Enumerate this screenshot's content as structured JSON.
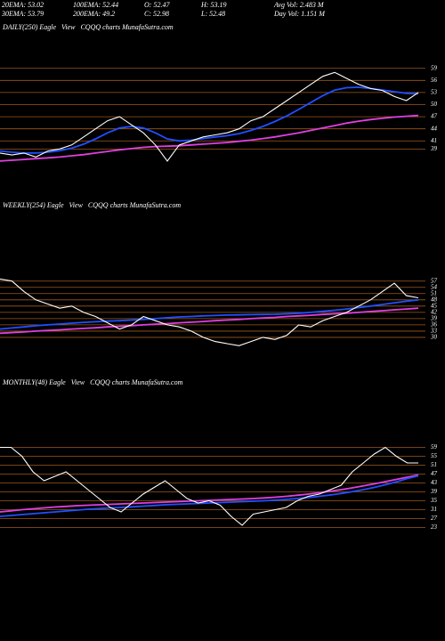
{
  "header": {
    "items": [
      "20EMA: 53.02",
      "100EMA: 52.44",
      "O: 52.47",
      "H: 53.19",
      "Avg Vol: 2.483 M",
      "30EMA: 53.79",
      "200EMA: 49.2",
      "C: 52.98",
      "L: 52.48",
      "Day Vol: 1.151 M"
    ]
  },
  "chart_data": [
    {
      "type": "line",
      "title": "DAILY(250) Eagle   View   CQQQ charts MunafaSutra.com",
      "ylim": [
        34,
        66
      ],
      "yticks": [
        59,
        56,
        53,
        50,
        47,
        44,
        41,
        39
      ],
      "grid": true,
      "series": [
        {
          "color": "#e040e0",
          "values": [
            36,
            36.2,
            36.4,
            36.6,
            36.8,
            37,
            37.3,
            37.6,
            38,
            38.4,
            38.8,
            39.1,
            39.4,
            39.6,
            39.7,
            39.8,
            40,
            40.2,
            40.4,
            40.6,
            40.9,
            41.2,
            41.6,
            42,
            42.5,
            43,
            43.6,
            44.2,
            44.8,
            45.4,
            45.9,
            46.3,
            46.6,
            46.9,
            47.1,
            47.3
          ]
        },
        {
          "color": "#2050ff",
          "values": [
            38.5,
            38.2,
            38,
            38,
            38.2,
            38.6,
            39.2,
            40.2,
            41.5,
            43,
            44.2,
            44.6,
            44.2,
            43,
            41.5,
            41,
            41.2,
            41.6,
            42,
            42.3,
            42.8,
            43.6,
            44.6,
            45.8,
            47.2,
            48.8,
            50.5,
            52.2,
            53.6,
            54.2,
            54.3,
            54,
            53.6,
            53.2,
            52.8,
            52.7
          ]
        },
        {
          "color": "#ffffff",
          "values": [
            38,
            37.5,
            38,
            37,
            38.5,
            39,
            40,
            42,
            44,
            46,
            47,
            45,
            43,
            40,
            36,
            40,
            41,
            42,
            42.5,
            43,
            44,
            46,
            47,
            49,
            51,
            53,
            55,
            57,
            58,
            56.5,
            55,
            54,
            53.5,
            52,
            51,
            53
          ]
        }
      ]
    },
    {
      "type": "line",
      "title": "WEEKLY(254) Eagle   View   CQQQ charts MunafaSutra.com",
      "ylim": [
        21,
        68
      ],
      "yticks": [
        57,
        54,
        51,
        48,
        45,
        42,
        39,
        36,
        33,
        30
      ],
      "grid": true,
      "series": [
        {
          "color": "#e040e0",
          "values": [
            32,
            32.3,
            32.6,
            33,
            33.3,
            33.6,
            34,
            34.3,
            34.6,
            35,
            35.3,
            35.6,
            36,
            36.3,
            36.6,
            37,
            37.3,
            37.6,
            38,
            38.3,
            38.6,
            39,
            39.3,
            39.6,
            40,
            40.3,
            40.6,
            41,
            41.3,
            41.6,
            42,
            42.4,
            42.8,
            43.2,
            43.6,
            44
          ]
        },
        {
          "color": "#2050ff",
          "values": [
            34,
            34.5,
            35,
            35.6,
            36,
            36.4,
            36.8,
            37.2,
            37.5,
            37.8,
            38,
            38.3,
            38.6,
            39,
            39.4,
            39.8,
            40,
            40.3,
            40.5,
            40.7,
            40.8,
            40.9,
            41,
            41.1,
            41.3,
            41.6,
            42,
            42.5,
            43,
            43.6,
            44.3,
            45,
            45.8,
            46.6,
            47.3,
            48
          ]
        },
        {
          "color": "#ffffff",
          "values": [
            58,
            57,
            52,
            48,
            46,
            44,
            45,
            42,
            40,
            37,
            34,
            36,
            40,
            38,
            36,
            35,
            33,
            30,
            28,
            27,
            26,
            28,
            30,
            29,
            31,
            36,
            35,
            38,
            40,
            42,
            45,
            48,
            52,
            56,
            50,
            49
          ]
        }
      ]
    },
    {
      "type": "line",
      "title": "MONTHLY(48) Eagle   View   CQQQ charts MunafaSutra.com",
      "ylim": [
        20,
        62
      ],
      "yticks": [
        59,
        55,
        51,
        47,
        43,
        39,
        35,
        31,
        27,
        23
      ],
      "grid": true,
      "series": [
        {
          "color": "#e040e0",
          "values": [
            30,
            30.5,
            31,
            31.4,
            31.8,
            32.2,
            32.5,
            32.8,
            33,
            33.2,
            33.4,
            33.6,
            33.8,
            34,
            34.2,
            34.4,
            34.6,
            34.8,
            35,
            35.2,
            35.4,
            35.6,
            35.8,
            36,
            36.3,
            36.6,
            37,
            37.5,
            38,
            38.6,
            39.3,
            40,
            40.8,
            41.7,
            42.6,
            43.6,
            44.6,
            45.6,
            46.6
          ]
        },
        {
          "color": "#2050ff",
          "values": [
            28,
            28.4,
            28.8,
            29.2,
            29.6,
            30,
            30.4,
            30.8,
            31.2,
            31.5,
            31.8,
            32,
            32.3,
            32.6,
            32.9,
            33.2,
            33.4,
            33.6,
            33.8,
            34,
            34.2,
            34.4,
            34.6,
            34.8,
            35,
            35.3,
            35.6,
            36,
            36.5,
            37,
            37.6,
            38.3,
            39.1,
            40,
            41,
            42.2,
            43.5,
            45,
            46.2
          ]
        },
        {
          "color": "#ffffff",
          "values": [
            59,
            59,
            55,
            48,
            44,
            46,
            48,
            44,
            40,
            36,
            32,
            30,
            34,
            38,
            41,
            44,
            40,
            36,
            34,
            35,
            33,
            28,
            24,
            29,
            30,
            31,
            32,
            35,
            37,
            38,
            40,
            42,
            48,
            52,
            56,
            59,
            55,
            52,
            52
          ]
        }
      ]
    }
  ]
}
